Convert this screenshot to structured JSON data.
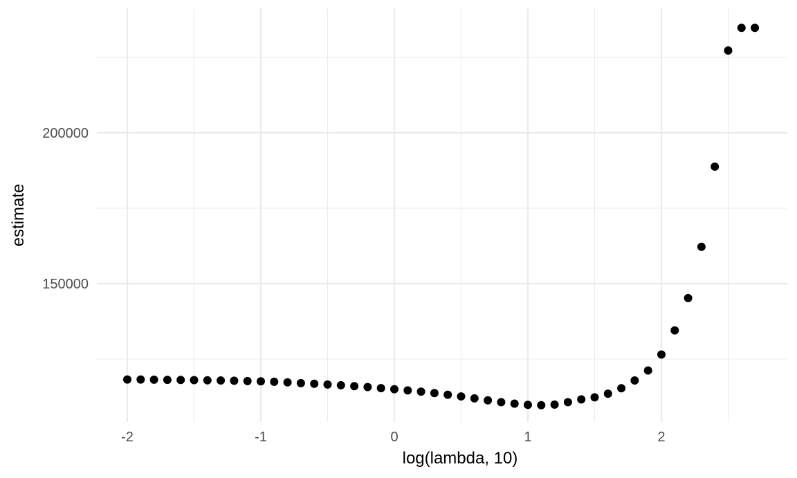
{
  "chart_data": {
    "type": "scatter",
    "xlabel": "log(lambda, 10)",
    "ylabel": "estimate",
    "xlim": [
      -2.1,
      2.8
    ],
    "ylim": [
      110000,
      245000
    ],
    "x_ticks": [
      -2,
      -1,
      0,
      1,
      2
    ],
    "x_tick_labels": [
      "-2",
      "-1",
      "0",
      "1",
      "2"
    ],
    "x_minor_ticks": [
      -1.5,
      -0.5,
      0.5,
      1.5,
      2.5
    ],
    "y_ticks": [
      150000,
      200000
    ],
    "y_tick_labels": [
      "150000",
      "200000"
    ],
    "y_minor_ticks": [
      125000,
      175000,
      225000
    ],
    "grid": true,
    "point_color": "#000000",
    "series": [
      {
        "x": [
          -2.0,
          -1.9,
          -1.8,
          -1.7,
          -1.6,
          -1.5,
          -1.4,
          -1.3,
          -1.2,
          -1.1,
          -1.0,
          -0.9,
          -0.8,
          -0.7,
          -0.6,
          -0.5,
          -0.4,
          -0.3,
          -0.2,
          -0.1,
          0.0,
          0.1,
          0.2,
          0.3,
          0.4,
          0.5,
          0.6,
          0.7,
          0.8,
          0.9,
          1.0,
          1.1,
          1.2,
          1.3,
          1.4,
          1.5,
          1.6,
          1.7,
          1.8,
          1.9,
          2.0,
          2.1,
          2.2,
          2.3,
          2.4,
          2.5,
          2.6,
          2.7
        ],
        "y": [
          118200,
          118200,
          118150,
          118100,
          118050,
          118000,
          117950,
          117900,
          117800,
          117700,
          117600,
          117450,
          117250,
          117000,
          116800,
          116550,
          116300,
          116000,
          115700,
          115350,
          115000,
          114600,
          114200,
          113700,
          113150,
          112600,
          111950,
          111300,
          110700,
          110200,
          109800,
          109700,
          109900,
          110700,
          111600,
          112300,
          113500,
          115300,
          117900,
          121200,
          126500,
          134500,
          145200,
          162200,
          188800,
          227300,
          234800,
          234800
        ]
      }
    ]
  }
}
